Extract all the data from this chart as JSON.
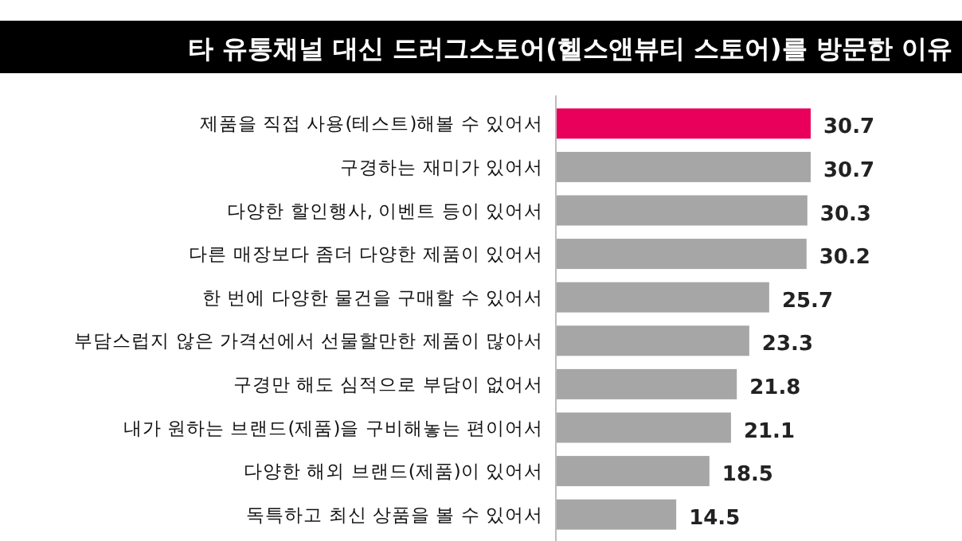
{
  "chart_data": {
    "type": "bar",
    "orientation": "horizontal",
    "title": "타 유통채널 대신 드러그스토어(헬스앤뷰티 스토어)를 방문한 이유",
    "categories": [
      "제품을 직접 사용(테스트)해볼 수 있어서",
      "구경하는 재미가 있어서",
      "다양한 할인행사, 이벤트 등이 있어서",
      "다른 매장보다 좀더 다양한 제품이 있어서",
      "한 번에 다양한 물건을 구매할 수 있어서",
      "부담스럽지 않은 가격선에서 선물할만한 제품이 많아서",
      "구경만 해도 심적으로 부담이 없어서",
      "내가 원하는 브랜드(제품)을 구비해놓는 편이어서",
      "다양한 해외 브랜드(제품)이 있어서",
      "독특하고 최신 상품을 볼 수 있어서"
    ],
    "values": [
      30.7,
      30.7,
      30.3,
      30.2,
      25.7,
      23.3,
      21.8,
      21.1,
      18.5,
      14.5
    ],
    "colors": [
      "#e8005a",
      "#a6a6a6",
      "#a6a6a6",
      "#a6a6a6",
      "#a6a6a6",
      "#a6a6a6",
      "#a6a6a6",
      "#a6a6a6",
      "#a6a6a6",
      "#a6a6a6"
    ],
    "data_labels": true
  }
}
